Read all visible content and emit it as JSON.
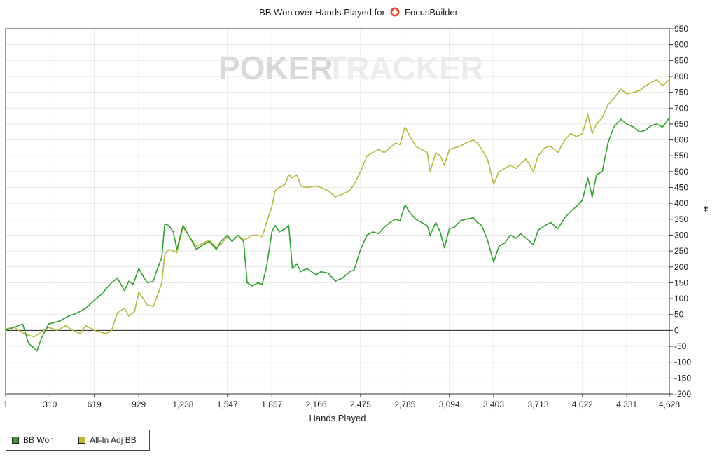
{
  "title": {
    "prefix": "BB Won over Hands Played for",
    "player": "FocusBuilder"
  },
  "watermark": {
    "left": "POKER",
    "right": "TRACKER"
  },
  "legend": [
    {
      "label": "BB Won",
      "color": "#2aa52a"
    },
    {
      "label": "All-In Adj BB",
      "color": "#b8b83a"
    }
  ],
  "icons": {
    "title_logo": "poker-suit-logo-icon",
    "y_axis_marker": "small-marker-icon"
  },
  "chart_data": {
    "type": "line",
    "title": "BB Won over Hands Played for FocusBuilder",
    "xlabel": "Hands Played",
    "ylabel": "",
    "xlim": [
      1,
      4628
    ],
    "ylim": [
      -200,
      950
    ],
    "x_ticks": [
      1,
      310,
      619,
      929,
      1238,
      1547,
      1857,
      2166,
      2475,
      2785,
      3094,
      3403,
      3713,
      4022,
      4331,
      4628
    ],
    "x_tick_labels": [
      "1",
      "310",
      "619",
      "929",
      "1,238",
      "1,547",
      "1,857",
      "2,166",
      "2,475",
      "2,785",
      "3,094",
      "3,403",
      "3,713",
      "4,022",
      "4,331",
      "4,628"
    ],
    "y_ticks": [
      -200,
      -150,
      -100,
      -50,
      0,
      50,
      100,
      150,
      200,
      250,
      300,
      350,
      400,
      450,
      500,
      550,
      600,
      650,
      700,
      750,
      800,
      850,
      900,
      950
    ],
    "y_axis_side": "right",
    "grid": true,
    "zero_line": true,
    "legend_position": "bottom-left",
    "series": [
      {
        "name": "BB Won",
        "color": "#2aa52a",
        "points": [
          [
            1,
            0
          ],
          [
            60,
            10
          ],
          [
            120,
            20
          ],
          [
            160,
            -40
          ],
          [
            220,
            -65
          ],
          [
            250,
            -25
          ],
          [
            300,
            20
          ],
          [
            380,
            30
          ],
          [
            440,
            45
          ],
          [
            500,
            55
          ],
          [
            560,
            70
          ],
          [
            619,
            95
          ],
          [
            660,
            110
          ],
          [
            700,
            130
          ],
          [
            740,
            150
          ],
          [
            780,
            165
          ],
          [
            830,
            125
          ],
          [
            860,
            155
          ],
          [
            890,
            145
          ],
          [
            929,
            195
          ],
          [
            960,
            170
          ],
          [
            990,
            150
          ],
          [
            1030,
            155
          ],
          [
            1060,
            195
          ],
          [
            1090,
            230
          ],
          [
            1110,
            335
          ],
          [
            1140,
            330
          ],
          [
            1170,
            310
          ],
          [
            1195,
            255
          ],
          [
            1238,
            330
          ],
          [
            1290,
            290
          ],
          [
            1330,
            255
          ],
          [
            1380,
            270
          ],
          [
            1420,
            280
          ],
          [
            1470,
            255
          ],
          [
            1500,
            280
          ],
          [
            1547,
            300
          ],
          [
            1580,
            280
          ],
          [
            1620,
            300
          ],
          [
            1660,
            280
          ],
          [
            1685,
            150
          ],
          [
            1720,
            140
          ],
          [
            1760,
            150
          ],
          [
            1790,
            145
          ],
          [
            1820,
            200
          ],
          [
            1857,
            310
          ],
          [
            1880,
            330
          ],
          [
            1910,
            310
          ],
          [
            1950,
            320
          ],
          [
            1975,
            330
          ],
          [
            2000,
            195
          ],
          [
            2030,
            210
          ],
          [
            2060,
            185
          ],
          [
            2100,
            195
          ],
          [
            2166,
            175
          ],
          [
            2200,
            185
          ],
          [
            2250,
            180
          ],
          [
            2300,
            155
          ],
          [
            2350,
            165
          ],
          [
            2400,
            185
          ],
          [
            2430,
            190
          ],
          [
            2475,
            255
          ],
          [
            2520,
            300
          ],
          [
            2560,
            310
          ],
          [
            2600,
            305
          ],
          [
            2640,
            325
          ],
          [
            2680,
            340
          ],
          [
            2720,
            350
          ],
          [
            2750,
            345
          ],
          [
            2785,
            395
          ],
          [
            2820,
            370
          ],
          [
            2860,
            350
          ],
          [
            2900,
            340
          ],
          [
            2940,
            330
          ],
          [
            2960,
            300
          ],
          [
            3000,
            340
          ],
          [
            3030,
            310
          ],
          [
            3060,
            260
          ],
          [
            3094,
            320
          ],
          [
            3130,
            325
          ],
          [
            3170,
            345
          ],
          [
            3210,
            350
          ],
          [
            3260,
            355
          ],
          [
            3290,
            340
          ],
          [
            3320,
            330
          ],
          [
            3360,
            285
          ],
          [
            3403,
            215
          ],
          [
            3440,
            265
          ],
          [
            3480,
            275
          ],
          [
            3520,
            300
          ],
          [
            3560,
            290
          ],
          [
            3590,
            305
          ],
          [
            3630,
            290
          ],
          [
            3680,
            270
          ],
          [
            3713,
            315
          ],
          [
            3760,
            330
          ],
          [
            3800,
            340
          ],
          [
            3850,
            320
          ],
          [
            3900,
            355
          ],
          [
            3940,
            375
          ],
          [
            3980,
            390
          ],
          [
            4022,
            410
          ],
          [
            4060,
            480
          ],
          [
            4090,
            420
          ],
          [
            4120,
            490
          ],
          [
            4160,
            500
          ],
          [
            4200,
            590
          ],
          [
            4240,
            640
          ],
          [
            4290,
            665
          ],
          [
            4331,
            650
          ],
          [
            4380,
            640
          ],
          [
            4420,
            625
          ],
          [
            4460,
            630
          ],
          [
            4500,
            645
          ],
          [
            4540,
            650
          ],
          [
            4580,
            640
          ],
          [
            4628,
            670
          ]
        ]
      },
      {
        "name": "All-In Adj BB",
        "color": "#b8b83a",
        "points": [
          [
            1,
            5
          ],
          [
            60,
            10
          ],
          [
            110,
            -5
          ],
          [
            160,
            -15
          ],
          [
            200,
            -20
          ],
          [
            250,
            -5
          ],
          [
            300,
            10
          ],
          [
            360,
            0
          ],
          [
            420,
            15
          ],
          [
            470,
            0
          ],
          [
            520,
            -10
          ],
          [
            560,
            15
          ],
          [
            619,
            0
          ],
          [
            660,
            -5
          ],
          [
            700,
            -10
          ],
          [
            740,
            0
          ],
          [
            780,
            55
          ],
          [
            830,
            70
          ],
          [
            860,
            45
          ],
          [
            900,
            60
          ],
          [
            929,
            120
          ],
          [
            960,
            100
          ],
          [
            990,
            80
          ],
          [
            1030,
            75
          ],
          [
            1060,
            110
          ],
          [
            1090,
            150
          ],
          [
            1110,
            240
          ],
          [
            1140,
            255
          ],
          [
            1170,
            250
          ],
          [
            1195,
            245
          ],
          [
            1238,
            325
          ],
          [
            1290,
            290
          ],
          [
            1330,
            265
          ],
          [
            1380,
            275
          ],
          [
            1420,
            285
          ],
          [
            1470,
            260
          ],
          [
            1500,
            270
          ],
          [
            1547,
            295
          ],
          [
            1580,
            280
          ],
          [
            1620,
            300
          ],
          [
            1660,
            285
          ],
          [
            1685,
            290
          ],
          [
            1720,
            300
          ],
          [
            1760,
            300
          ],
          [
            1790,
            295
          ],
          [
            1820,
            340
          ],
          [
            1857,
            390
          ],
          [
            1880,
            440
          ],
          [
            1910,
            450
          ],
          [
            1950,
            460
          ],
          [
            1975,
            490
          ],
          [
            2000,
            480
          ],
          [
            2030,
            490
          ],
          [
            2060,
            455
          ],
          [
            2100,
            450
          ],
          [
            2166,
            455
          ],
          [
            2200,
            450
          ],
          [
            2250,
            440
          ],
          [
            2300,
            420
          ],
          [
            2350,
            430
          ],
          [
            2400,
            440
          ],
          [
            2430,
            460
          ],
          [
            2475,
            500
          ],
          [
            2520,
            550
          ],
          [
            2560,
            560
          ],
          [
            2600,
            570
          ],
          [
            2640,
            560
          ],
          [
            2680,
            575
          ],
          [
            2720,
            590
          ],
          [
            2750,
            585
          ],
          [
            2785,
            640
          ],
          [
            2820,
            610
          ],
          [
            2860,
            580
          ],
          [
            2900,
            570
          ],
          [
            2940,
            560
          ],
          [
            2960,
            500
          ],
          [
            3000,
            560
          ],
          [
            3030,
            550
          ],
          [
            3060,
            520
          ],
          [
            3094,
            570
          ],
          [
            3130,
            575
          ],
          [
            3170,
            580
          ],
          [
            3210,
            590
          ],
          [
            3260,
            600
          ],
          [
            3290,
            590
          ],
          [
            3320,
            570
          ],
          [
            3360,
            540
          ],
          [
            3403,
            460
          ],
          [
            3440,
            500
          ],
          [
            3480,
            510
          ],
          [
            3520,
            520
          ],
          [
            3560,
            510
          ],
          [
            3590,
            525
          ],
          [
            3630,
            540
          ],
          [
            3680,
            500
          ],
          [
            3713,
            550
          ],
          [
            3760,
            575
          ],
          [
            3800,
            580
          ],
          [
            3850,
            560
          ],
          [
            3900,
            600
          ],
          [
            3940,
            620
          ],
          [
            3980,
            610
          ],
          [
            4022,
            620
          ],
          [
            4060,
            680
          ],
          [
            4090,
            620
          ],
          [
            4120,
            650
          ],
          [
            4160,
            670
          ],
          [
            4200,
            710
          ],
          [
            4240,
            730
          ],
          [
            4290,
            760
          ],
          [
            4331,
            745
          ],
          [
            4380,
            750
          ],
          [
            4420,
            755
          ],
          [
            4460,
            770
          ],
          [
            4500,
            780
          ],
          [
            4540,
            790
          ],
          [
            4580,
            770
          ],
          [
            4628,
            790
          ]
        ]
      }
    ]
  }
}
